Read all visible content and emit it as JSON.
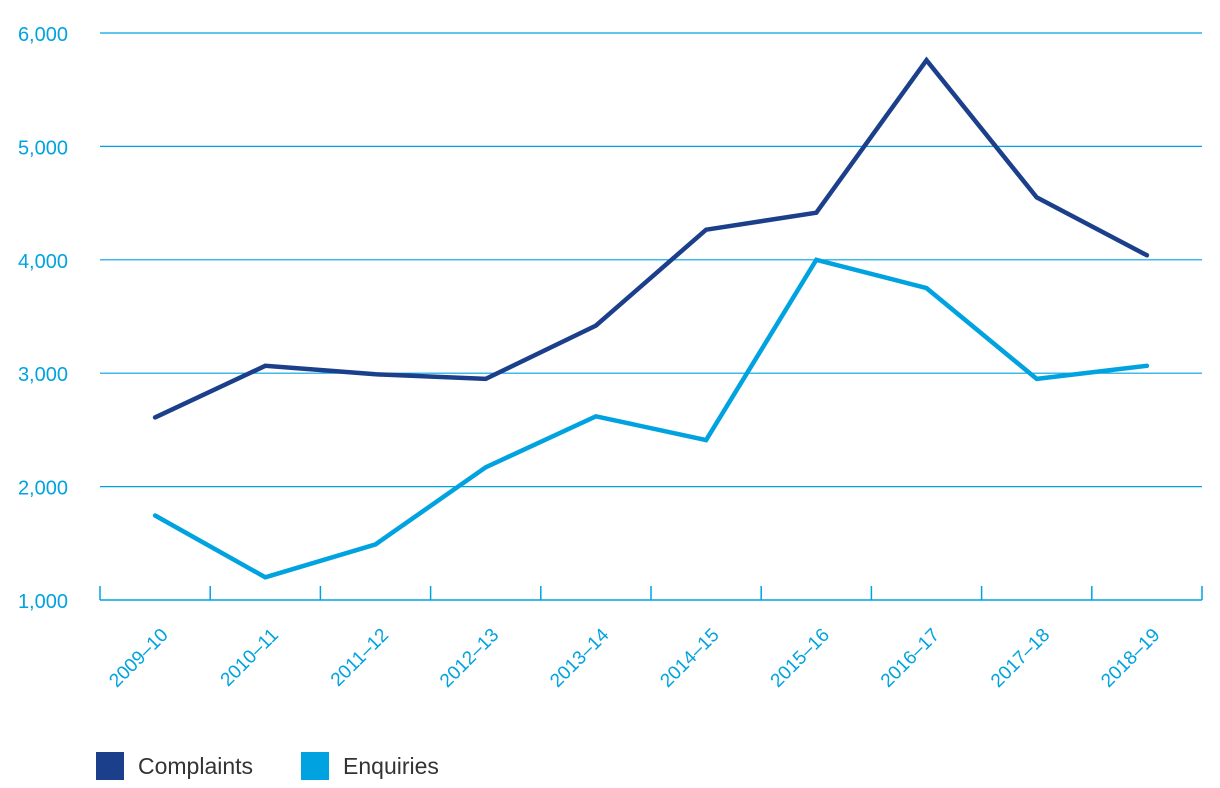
{
  "chart_data": {
    "type": "line",
    "title": "",
    "xlabel": "",
    "ylabel": "",
    "categories": [
      "2009–10",
      "2010–11",
      "2011–12",
      "2012–13",
      "2013–14",
      "2014–15",
      "2015–16",
      "2016–17",
      "2017–18",
      "2018–19"
    ],
    "series": [
      {
        "name": "Complaints",
        "color": "#1b3f8b",
        "values": [
          2610,
          3065,
          2990,
          2950,
          3420,
          4265,
          4415,
          5760,
          4550,
          4040
        ]
      },
      {
        "name": "Enquiries",
        "color": "#00a3e0",
        "values": [
          1745,
          1200,
          1490,
          2170,
          2620,
          2410,
          4000,
          3750,
          2950,
          3065
        ]
      }
    ],
    "ylim": [
      1000,
      6000
    ],
    "yticks": [
      "1,000",
      "2,000",
      "3,000",
      "4,000",
      "5,000",
      "6,000"
    ],
    "grid": true,
    "legend_position": "bottom-left",
    "axis_color": "#00a3e0"
  }
}
